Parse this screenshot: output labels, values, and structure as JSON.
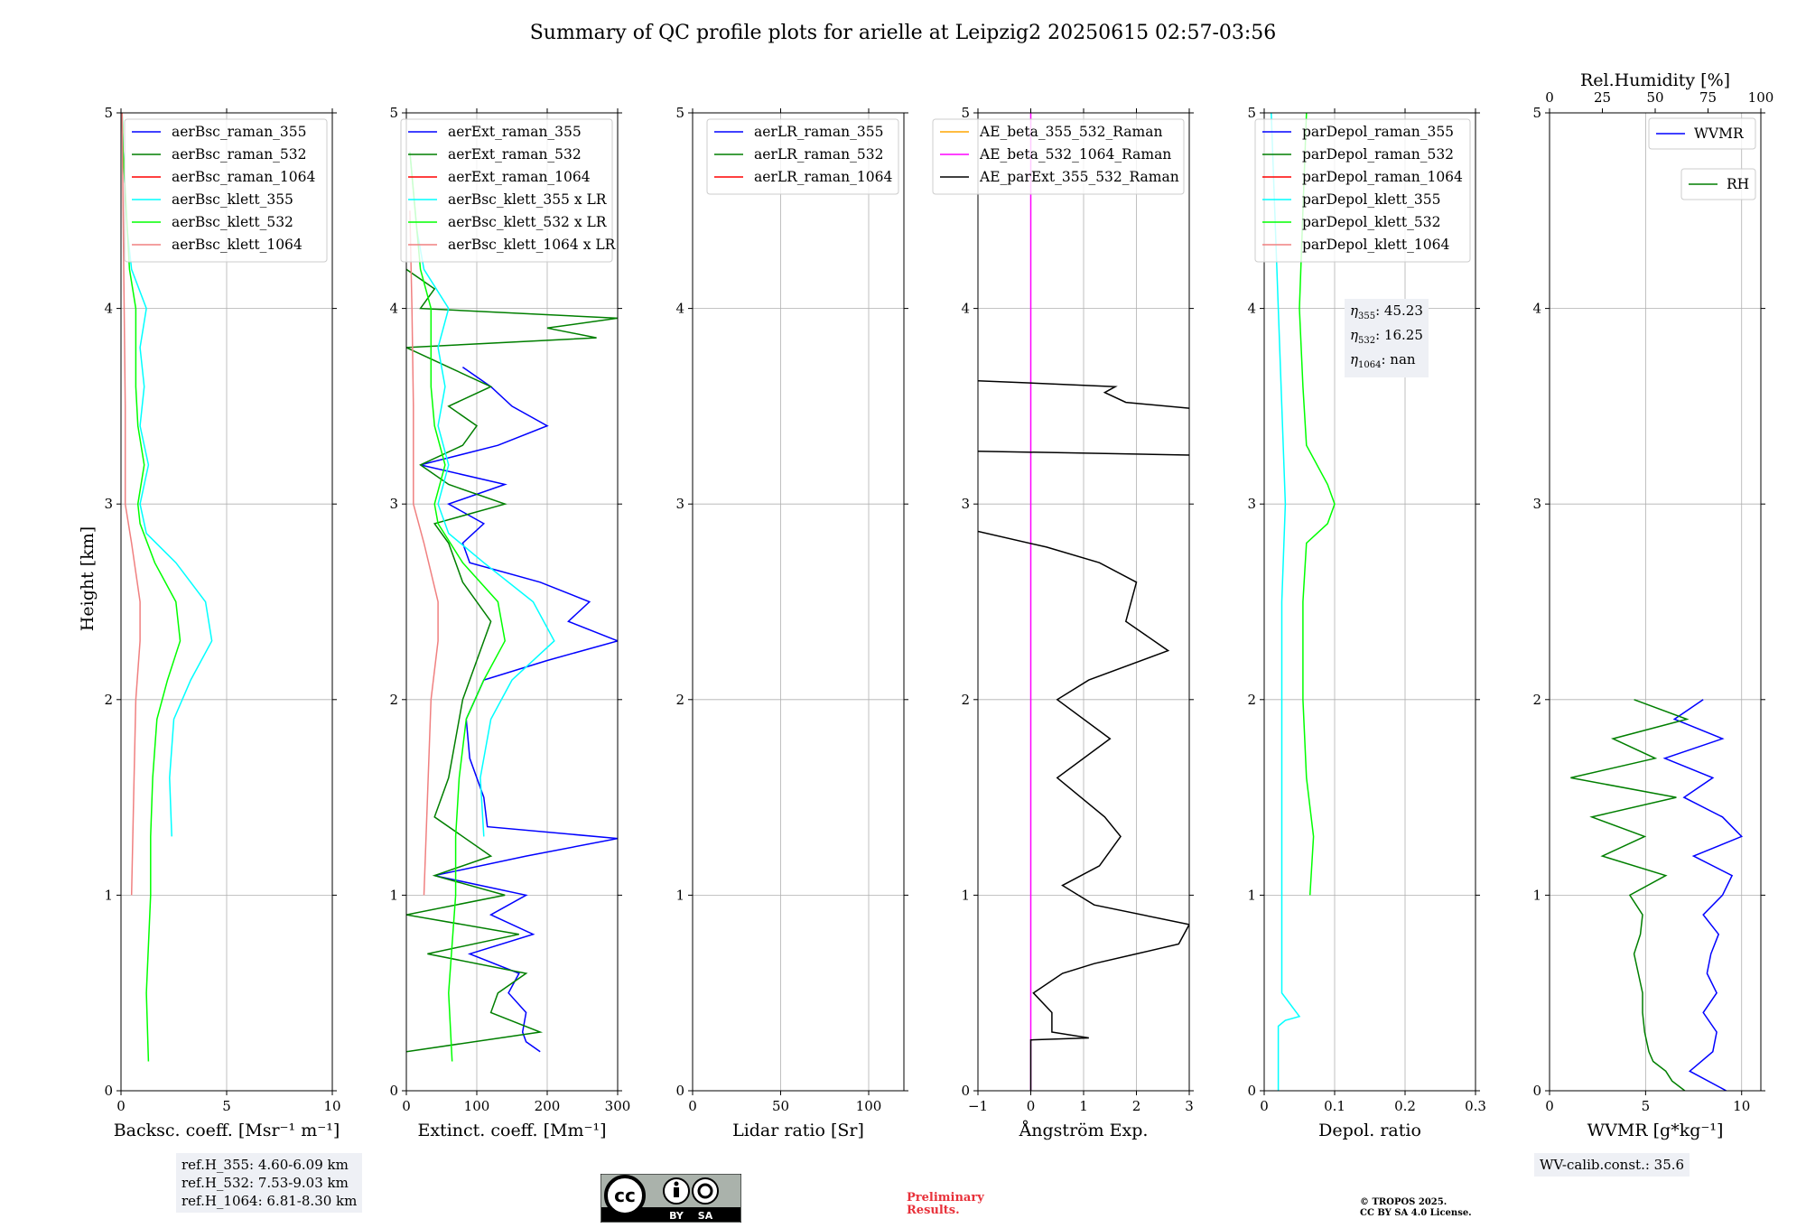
{
  "title": "Summary of QC profile plots for arielle at Leipzig2 20250615 02:57-03:56",
  "colors": {
    "blue": "#0000ff",
    "green": "#007f00",
    "red": "#ff0000",
    "cyan": "#00ffff",
    "lime": "#00ff00",
    "salmon": "#f08080",
    "orange": "#ffa500",
    "magenta": "#ff00ff",
    "black": "#000000"
  },
  "ylabel": "Height [km]",
  "ref_heights": [
    "ref.H_355: 4.60-6.09 km",
    "ref.H_532: 7.53-9.03 km",
    "ref.H_1064: 6.81-8.30 km"
  ],
  "eta_box": {
    "eta355": "45.23",
    "eta532": "16.25",
    "eta1064": "nan"
  },
  "wv_calib": "WV-calib.const.: 35.6",
  "license": {
    "badge_icon": "cc-by-sa-icon",
    "cc": "cc",
    "by": "BY",
    "sa": "SA"
  },
  "preliminary": [
    "Preliminary",
    "Results."
  ],
  "copyright": [
    "© TROPOS 2025.",
    "CC BY SA 4.0 License."
  ],
  "chart_data": [
    {
      "type": "line",
      "xlabel": "Backsc. coeff. [Msr⁻¹ m⁻¹]",
      "xlim": [
        0,
        10
      ],
      "xticks": [
        0,
        5,
        10
      ],
      "ylim": [
        0,
        5
      ],
      "yticks": [
        0,
        1,
        2,
        3,
        4,
        5
      ],
      "grid": true,
      "legend": "top-right",
      "series": [
        {
          "name": "aerBsc_raman_355",
          "color": "#0000ff",
          "x": [],
          "y": []
        },
        {
          "name": "aerBsc_raman_532",
          "color": "#007f00",
          "x": [],
          "y": []
        },
        {
          "name": "aerBsc_raman_1064",
          "color": "#ff0000",
          "x": [],
          "y": []
        },
        {
          "name": "aerBsc_klett_355",
          "color": "#00ffff",
          "y": [
            1.3,
            1.6,
            1.9,
            2.1,
            2.3,
            2.5,
            2.7,
            2.85,
            3.0,
            3.2,
            3.4,
            3.6,
            3.8,
            4.0,
            4.2,
            4.4,
            4.6,
            4.8,
            5.0
          ],
          "x": [
            2.4,
            2.3,
            2.5,
            3.3,
            4.3,
            4.0,
            2.6,
            1.2,
            0.9,
            1.3,
            0.9,
            1.1,
            0.9,
            1.2,
            0.5,
            0.3,
            0.2,
            0.1,
            0.05
          ]
        },
        {
          "name": "aerBsc_klett_532",
          "color": "#00ff00",
          "y": [
            0.15,
            0.5,
            1.0,
            1.3,
            1.6,
            1.9,
            2.1,
            2.3,
            2.5,
            2.7,
            2.9,
            3.0,
            3.2,
            3.4,
            3.6,
            3.8,
            4.0,
            4.2,
            4.4,
            4.6,
            4.8,
            5.0
          ],
          "x": [
            1.3,
            1.2,
            1.4,
            1.4,
            1.5,
            1.7,
            2.2,
            2.8,
            2.6,
            1.6,
            0.9,
            0.8,
            1.1,
            0.8,
            0.7,
            0.7,
            0.7,
            0.4,
            0.3,
            0.2,
            0.1,
            0.05
          ]
        },
        {
          "name": "aerBsc_klett_1064",
          "color": "#f08080",
          "y": [
            1.0,
            1.5,
            2.0,
            2.3,
            2.5,
            2.8,
            3.0,
            3.5,
            4.0,
            4.5,
            5.0
          ],
          "x": [
            0.5,
            0.6,
            0.7,
            0.9,
            0.9,
            0.5,
            0.2,
            0.2,
            0.15,
            0.1,
            0.05
          ]
        }
      ]
    },
    {
      "type": "line",
      "xlabel": "Extinct. coeff. [Mm⁻¹]",
      "xlim": [
        0,
        300
      ],
      "xticks": [
        0,
        100,
        200,
        300
      ],
      "ylim": [
        0,
        5
      ],
      "yticks": [
        0,
        1,
        2,
        3,
        4,
        5
      ],
      "grid": true,
      "legend": "top-right",
      "series": [
        {
          "name": "aerExt_raman_355",
          "color": "#0000ff",
          "y": [
            0.2,
            0.25,
            0.3,
            0.4,
            0.5,
            0.6,
            0.7,
            0.8,
            0.9,
            1.0,
            1.1,
            1.2,
            1.29,
            1.35,
            1.5,
            1.7,
            1.9,
            2.1,
            2.2,
            2.3,
            2.4,
            2.5,
            2.6,
            2.7,
            2.8,
            2.9,
            3.0,
            3.1,
            3.2,
            3.3,
            3.4,
            3.5,
            3.6,
            3.7
          ],
          "x": [
            190,
            170,
            165,
            170,
            145,
            160,
            90,
            180,
            120,
            170,
            40,
            170,
            300,
            115,
            110,
            90,
            85,
            110,
            200,
            300,
            230,
            260,
            190,
            90,
            80,
            110,
            60,
            140,
            20,
            130,
            200,
            150,
            120,
            80
          ]
        },
        {
          "name": "aerExt_raman_532",
          "color": "#007f00",
          "y": [
            0.2,
            0.3,
            0.4,
            0.5,
            0.6,
            0.7,
            0.8,
            0.9,
            1.0,
            1.1,
            1.2,
            1.4,
            1.6,
            1.8,
            2.0,
            2.2,
            2.4,
            2.6,
            2.8,
            2.9,
            3.0,
            3.1,
            3.2,
            3.3,
            3.4,
            3.5,
            3.6,
            3.7,
            3.8,
            3.85,
            3.9,
            3.95,
            4.0,
            4.1,
            4.2
          ],
          "x": [
            0,
            190,
            120,
            130,
            170,
            30,
            160,
            0,
            140,
            40,
            120,
            40,
            60,
            70,
            80,
            100,
            120,
            80,
            60,
            40,
            140,
            60,
            20,
            80,
            100,
            60,
            120,
            60,
            0,
            270,
            200,
            300,
            20,
            40,
            0
          ]
        },
        {
          "name": "aerExt_raman_1064",
          "color": "#ff0000",
          "x": [],
          "y": []
        },
        {
          "name": "aerBsc_klett_355 x LR",
          "color": "#00ffff",
          "y": [
            1.3,
            1.6,
            1.9,
            2.1,
            2.3,
            2.5,
            2.7,
            2.85,
            3.0,
            3.2,
            3.4,
            3.6,
            3.8,
            4.0,
            4.2,
            4.4,
            4.6,
            4.8
          ],
          "x": [
            110,
            105,
            120,
            150,
            210,
            180,
            110,
            60,
            45,
            60,
            45,
            55,
            45,
            60,
            25,
            15,
            10,
            5
          ]
        },
        {
          "name": "aerBsc_klett_532 x LR",
          "color": "#00ff00",
          "y": [
            0.15,
            0.5,
            1.0,
            1.3,
            1.6,
            1.9,
            2.1,
            2.3,
            2.5,
            2.7,
            2.9,
            3.0,
            3.2,
            3.4,
            3.6,
            3.8,
            4.0,
            4.2,
            4.4,
            4.6,
            4.8
          ],
          "x": [
            65,
            60,
            70,
            70,
            75,
            85,
            110,
            140,
            130,
            80,
            45,
            40,
            55,
            40,
            35,
            35,
            35,
            20,
            15,
            10,
            5
          ]
        },
        {
          "name": "aerBsc_klett_1064 x LR",
          "color": "#f08080",
          "y": [
            1.0,
            1.5,
            2.0,
            2.3,
            2.5,
            2.8,
            3.0,
            3.5,
            4.0,
            4.5
          ],
          "x": [
            25,
            30,
            35,
            45,
            45,
            25,
            10,
            10,
            8,
            5
          ]
        }
      ]
    },
    {
      "type": "line",
      "xlabel": "Lidar ratio [Sr]",
      "xlim": [
        0,
        120
      ],
      "xticks": [
        0,
        50,
        100
      ],
      "ylim": [
        0,
        5
      ],
      "yticks": [
        0,
        1,
        2,
        3,
        4,
        5
      ],
      "grid": true,
      "legend": "top-right",
      "series": [
        {
          "name": "aerLR_raman_355",
          "color": "#0000ff",
          "x": [],
          "y": []
        },
        {
          "name": "aerLR_raman_532",
          "color": "#007f00",
          "x": [],
          "y": []
        },
        {
          "name": "aerLR_raman_1064",
          "color": "#ff0000",
          "x": [],
          "y": []
        }
      ]
    },
    {
      "type": "line",
      "xlabel": "Ångström Exp.",
      "xlim": [
        -1,
        3
      ],
      "xticks": [
        -1,
        0,
        1,
        2,
        3
      ],
      "ylim": [
        0,
        5
      ],
      "yticks": [
        0,
        1,
        2,
        3,
        4,
        5
      ],
      "grid": true,
      "legend": "top-right",
      "series": [
        {
          "name": "AE_beta_355_532_Raman",
          "color": "#ffa500",
          "x": [],
          "y": []
        },
        {
          "name": "AE_beta_532_1064_Raman",
          "color": "#ff00ff",
          "x": [
            0,
            0
          ],
          "y": [
            0,
            5
          ]
        },
        {
          "name": "AE_parExt_355_532_Raman",
          "color": "#000000",
          "y": [
            0,
            0.26,
            0.27,
            0.3,
            0.4,
            0.5,
            0.6,
            0.65,
            0.7,
            0.75,
            0.85,
            0.95,
            1.05,
            1.15,
            1.3,
            1.4,
            1.6,
            1.8,
            2.0,
            2.1,
            2.25,
            2.4,
            2.6,
            2.7,
            2.78,
            2.86
          ],
          "x": [
            0,
            0,
            1.1,
            0.4,
            0.4,
            0.05,
            0.6,
            1.2,
            2.0,
            2.8,
            3.0,
            1.2,
            0.6,
            1.3,
            1.7,
            1.4,
            0.5,
            1.5,
            0.5,
            1.1,
            2.6,
            1.8,
            2.0,
            1.3,
            0.3,
            -1
          ]
        },
        {
          "name": "AE_parExt_355_532_Raman ",
          "color": "#000000",
          "y": [
            3.27,
            3.25
          ],
          "x": [
            -1,
            3
          ]
        },
        {
          "name": "AE_parExt_355_532_Raman  ",
          "color": "#000000",
          "y": [
            3.63,
            3.6,
            3.57,
            3.52,
            3.49
          ],
          "x": [
            -1,
            1.6,
            1.4,
            1.8,
            3
          ]
        }
      ]
    },
    {
      "type": "line",
      "xlabel": "Depol. ratio",
      "xlim": [
        0,
        0.3
      ],
      "xticks": [
        0.0,
        0.1,
        0.2,
        0.3
      ],
      "ylim": [
        0,
        5
      ],
      "yticks": [
        0,
        1,
        2,
        3,
        4,
        5
      ],
      "grid": true,
      "legend": "top-right",
      "series": [
        {
          "name": "parDepol_raman_355",
          "color": "#0000ff",
          "x": [],
          "y": []
        },
        {
          "name": "parDepol_raman_532",
          "color": "#007f00",
          "x": [],
          "y": []
        },
        {
          "name": "parDepol_raman_1064",
          "color": "#ff0000",
          "x": [],
          "y": []
        },
        {
          "name": "parDepol_klett_355",
          "color": "#00ffff",
          "y": [
            0,
            0.33,
            0.36,
            0.38,
            0.5,
            1.0,
            1.5,
            2.0,
            2.5,
            3.0,
            3.5,
            4.0,
            4.5,
            5.0
          ],
          "x": [
            0.02,
            0.02,
            0.03,
            0.05,
            0.025,
            0.025,
            0.025,
            0.025,
            0.025,
            0.03,
            0.025,
            0.02,
            0.015,
            0.01
          ]
        },
        {
          "name": "parDepol_klett_532",
          "color": "#00ff00",
          "y": [
            1.0,
            1.3,
            1.6,
            2.0,
            2.5,
            2.8,
            2.9,
            3.0,
            3.1,
            3.3,
            3.6,
            4.0,
            4.5,
            5.0
          ],
          "x": [
            0.065,
            0.07,
            0.06,
            0.055,
            0.055,
            0.06,
            0.09,
            0.1,
            0.09,
            0.06,
            0.055,
            0.05,
            0.055,
            0.06
          ]
        },
        {
          "name": "parDepol_klett_1064",
          "color": "#f08080",
          "x": [],
          "y": []
        }
      ]
    },
    {
      "type": "line",
      "xlabel": "WVMR [g*kg⁻¹]",
      "xlim": [
        0,
        11
      ],
      "xticks": [
        0,
        5,
        10
      ],
      "ylim": [
        0,
        5
      ],
      "yticks": [
        0,
        1,
        2,
        3,
        4,
        5
      ],
      "x2label": "Rel.Humidity [%]",
      "x2lim": [
        0,
        100
      ],
      "x2ticks": [
        0,
        25,
        50,
        75,
        100
      ],
      "grid": true,
      "legend": "top-right",
      "series": [
        {
          "name": "WVMR",
          "color": "#0000ff",
          "y": [
            0.0,
            0.1,
            0.2,
            0.3,
            0.4,
            0.5,
            0.6,
            0.7,
            0.8,
            0.9,
            1.0,
            1.1,
            1.2,
            1.3,
            1.4,
            1.5,
            1.6,
            1.7,
            1.8,
            1.9,
            2.0
          ],
          "x": [
            9.2,
            7.3,
            8.5,
            8.7,
            8.0,
            8.7,
            8.2,
            8.4,
            8.8,
            8.0,
            9.0,
            9.5,
            7.5,
            10.0,
            9.0,
            7.0,
            8.5,
            6.0,
            9.0,
            6.5,
            8.0
          ]
        },
        {
          "name": "RH",
          "color": "#007f00",
          "y": [
            0.0,
            0.05,
            0.1,
            0.15,
            0.2,
            0.3,
            0.4,
            0.5,
            0.6,
            0.7,
            0.8,
            0.9,
            1.0,
            1.1,
            1.2,
            1.3,
            1.4,
            1.5,
            1.6,
            1.7,
            1.8,
            1.9,
            2.0
          ],
          "x": [
            64,
            58,
            55,
            49,
            47,
            45,
            44,
            44,
            42,
            40,
            43,
            44,
            38,
            55,
            25,
            45,
            20,
            60,
            10,
            50,
            30,
            65,
            40
          ]
        }
      ]
    }
  ]
}
